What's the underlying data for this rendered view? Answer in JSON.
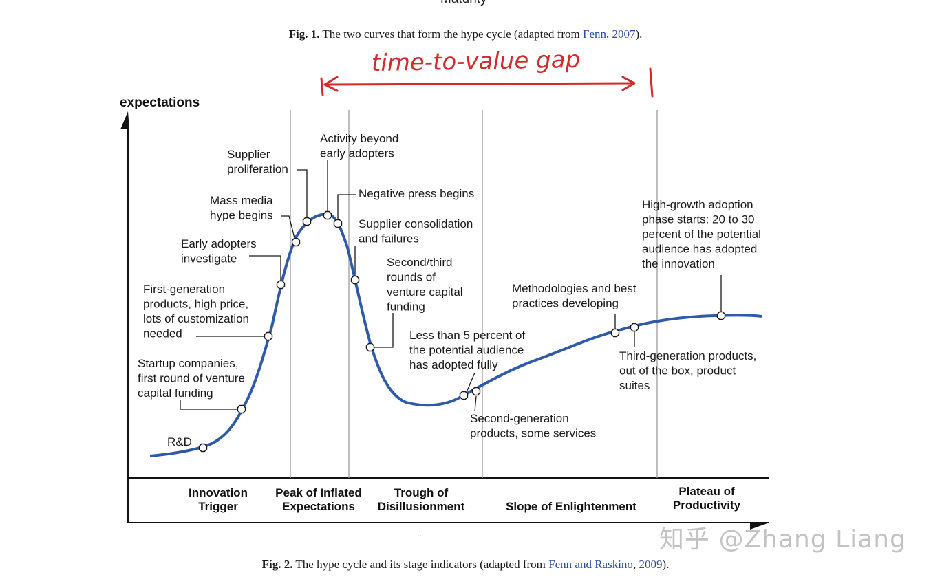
{
  "top_cut_text": "Maturity",
  "fig1_caption": {
    "label": "Fig. 1.",
    "text": " The two curves that form the hype cycle (adapted from ",
    "cite_author": "Fenn",
    "sep": ", ",
    "cite_year": "2007",
    "end": ")."
  },
  "handwritten_note": "time-to-value gap",
  "chart_data": {
    "type": "line",
    "title": "",
    "ylabel": "expectations",
    "xlabel": "",
    "phases": [
      "Innovation Trigger",
      "Peak of Inflated Expectations",
      "Trough of Disillusionment",
      "Slope of Enlightenment",
      "Plateau of Productivity"
    ],
    "phase_labels": [
      [
        "Innovation",
        "Trigger"
      ],
      [
        "Peak of Inflated",
        "Expectations"
      ],
      [
        "Trough of",
        "Disillusionment"
      ],
      [
        "Slope of Enlightenment"
      ],
      [
        "Plateau of",
        "Productivity"
      ]
    ],
    "curve_color": "#2f5aa8",
    "annotation_color": "#1a1a1a",
    "markers": [
      {
        "id": "rd",
        "lines": [
          "R&D"
        ]
      },
      {
        "id": "startup",
        "lines": [
          "Startup companies,",
          "first round of venture",
          "capital funding"
        ]
      },
      {
        "id": "first_gen",
        "lines": [
          "First-generation",
          "products, high price,",
          "lots of customization",
          "needed"
        ]
      },
      {
        "id": "early_adopters",
        "lines": [
          "Early adopters",
          "investigate"
        ]
      },
      {
        "id": "mass_media",
        "lines": [
          "Mass media",
          "hype begins"
        ]
      },
      {
        "id": "supplier_prolif",
        "lines": [
          "Supplier",
          "proliferation"
        ]
      },
      {
        "id": "activity_beyond",
        "lines": [
          "Activity beyond",
          "early adopters"
        ]
      },
      {
        "id": "negative_press",
        "lines": [
          "Negative press begins"
        ]
      },
      {
        "id": "consolidation",
        "lines": [
          "Supplier consolidation",
          "and failures"
        ]
      },
      {
        "id": "second_third",
        "lines": [
          "Second/third",
          "rounds of",
          "venture capital",
          "funding"
        ]
      },
      {
        "id": "less_than_5",
        "lines": [
          "Less than 5 percent of",
          "the potential audience",
          "has adopted fully"
        ]
      },
      {
        "id": "second_gen",
        "lines": [
          "Second-generation",
          "products, some services"
        ]
      },
      {
        "id": "methodologies",
        "lines": [
          "Methodologies and best",
          "practices developing"
        ]
      },
      {
        "id": "third_gen",
        "lines": [
          "Third-generation products,",
          "out of the box, product",
          "suites"
        ]
      },
      {
        "id": "high_growth",
        "lines": [
          "High-growth adoption",
          "phase starts: 20 to 30",
          "percent of the potential",
          "audience has adopted",
          "the innovation"
        ]
      }
    ]
  },
  "fig2_caption": {
    "label": "Fig. 2.",
    "text": " The hype cycle and its stage indicators (adapted from ",
    "cite_author": "Fenn and Raskino",
    "sep": ", ",
    "cite_year": "2009",
    "end": ")."
  },
  "watermark": "知乎 @Zhang Liang",
  "colors": {
    "handwriting": "#d42a2a",
    "citation": "#2a4f9c"
  }
}
